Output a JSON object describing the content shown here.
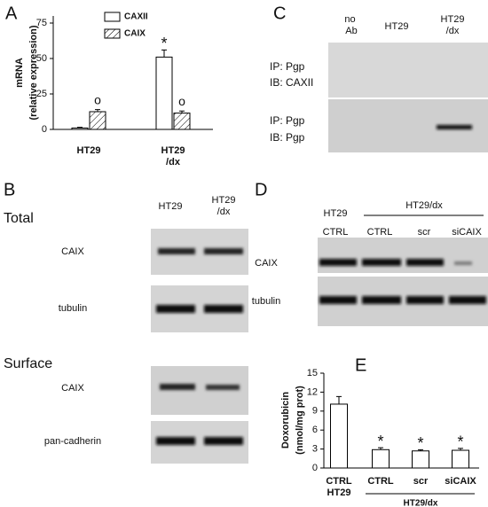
{
  "panel_labels": [
    "A",
    "B",
    "C",
    "D",
    "E"
  ],
  "chart_data": [
    {
      "type": "bar",
      "ylabel": [
        "mRNA",
        "(relative expression)"
      ],
      "categories": [
        "HT29",
        "HT29/dx"
      ],
      "series": [
        {
          "name": "CAXII",
          "color": "#ffffff",
          "values": [
            1,
            51
          ],
          "errors": [
            0.5,
            5
          ],
          "significance": [
            null,
            "*"
          ]
        },
        {
          "name": "CAIX",
          "color": "#ffffff",
          "pattern": "hatch",
          "values": [
            12.5,
            11.5
          ],
          "errors": [
            1.5,
            1.5
          ],
          "significance": [
            "o",
            "o"
          ]
        }
      ],
      "ylim": [
        0,
        80
      ],
      "yticks": [
        0,
        25,
        50,
        75
      ],
      "legend": "top"
    },
    {
      "type": "bar",
      "ylabel": [
        "Doxorubicin",
        "(nmol/mg prot)"
      ],
      "categories": [
        "CTRL",
        "CTRL",
        "scr",
        "siCAIX"
      ],
      "category_groups": [
        "HT29",
        "HT29/dx"
      ],
      "series": [
        {
          "name": null,
          "color": "#ffffff",
          "values": [
            10.1,
            2.9,
            2.7,
            2.8
          ],
          "errors": [
            1.2,
            0.3,
            0.2,
            0.3
          ],
          "significance": [
            null,
            "*",
            "*",
            "*"
          ]
        }
      ],
      "ylim": [
        0,
        15
      ],
      "yticks": [
        0,
        3,
        6,
        9,
        12,
        15
      ]
    }
  ],
  "blot_b": {
    "columns": [
      "HT29",
      "HT29/dx"
    ],
    "sections": [
      {
        "title": "Total",
        "rows": [
          "CAIX",
          "tubulin"
        ]
      },
      {
        "title": "Surface",
        "rows": [
          "CAIX",
          "pan-cadherin"
        ]
      }
    ]
  },
  "blot_c": {
    "columns": [
      "no Ab",
      "HT29",
      "HT29/dx"
    ],
    "rows": [
      [
        "IP: Pgp",
        "IB: CAXII"
      ],
      [
        "IP: Pgp",
        "IB: Pgp"
      ]
    ]
  },
  "blot_d": {
    "columns": [
      "CTRL",
      "CTRL",
      "scr",
      "siCAIX"
    ],
    "column_groups": [
      "HT29",
      "HT29/dx"
    ],
    "rows": [
      "CAIX",
      "tubulin"
    ]
  }
}
